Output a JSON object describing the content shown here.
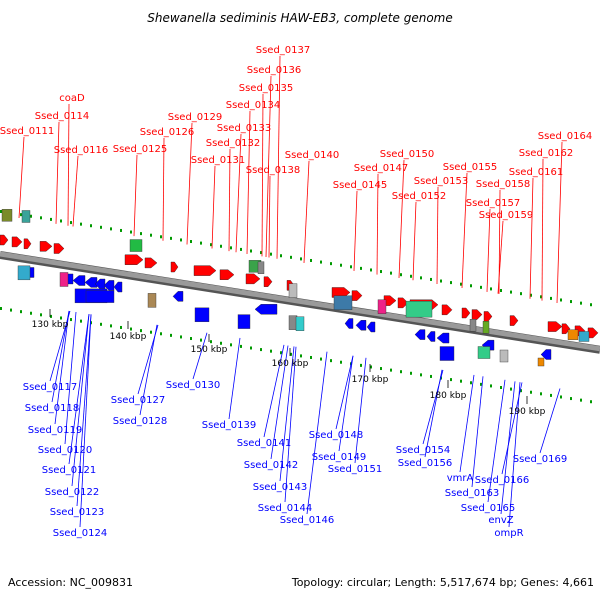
{
  "title": "Shewanella sediminis HAW-EB3, complete genome",
  "footer": {
    "accession": "Accession: NC_009831",
    "topology": "Topology: circular; Length: 5,517,674 bp; Genes: 4,661"
  },
  "colors": {
    "forward": "#ff0000",
    "reverse": "#0000ff",
    "backbone": "#888888",
    "tick": "#009900"
  },
  "kbp_labels": [
    "130 kbp",
    "140 kbp",
    "150 kbp",
    "160 kbp",
    "170 kbp",
    "180 kbp",
    "190 kbp"
  ],
  "top_genes": [
    "Ssed_0111",
    "Ssed_0114",
    "coaD",
    "Ssed_0116",
    "Ssed_0125",
    "Ssed_0126",
    "Ssed_0129",
    "Ssed_0131",
    "Ssed_0132",
    "Ssed_0133",
    "Ssed_0134",
    "Ssed_0135",
    "Ssed_0136",
    "Ssed_0137",
    "Ssed_0138",
    "Ssed_0140",
    "Ssed_0145",
    "Ssed_0147",
    "Ssed_0150",
    "Ssed_0152",
    "Ssed_0153",
    "Ssed_0155",
    "Ssed_0157",
    "Ssed_0158",
    "Ssed_0159",
    "Ssed_0161",
    "Ssed_0162",
    "Ssed_0164"
  ],
  "bottom_genes": [
    "Ssed_0117",
    "Ssed_0118",
    "Ssed_0119",
    "Ssed_0120",
    "Ssed_0121",
    "Ssed_0122",
    "Ssed_0123",
    "Ssed_0124",
    "Ssed_0127",
    "Ssed_0128",
    "Ssed_0130",
    "Ssed_0139",
    "Ssed_0141",
    "Ssed_0142",
    "Ssed_0143",
    "Ssed_0144",
    "Ssed_0146",
    "Ssed_0148",
    "Ssed_0149",
    "Ssed_0151",
    "Ssed_0154",
    "Ssed_0156",
    "vmrA",
    "Ssed_0163",
    "Ssed_0166",
    "Ssed_0165",
    "envZ",
    "ompR",
    "Ssed_0169"
  ]
}
